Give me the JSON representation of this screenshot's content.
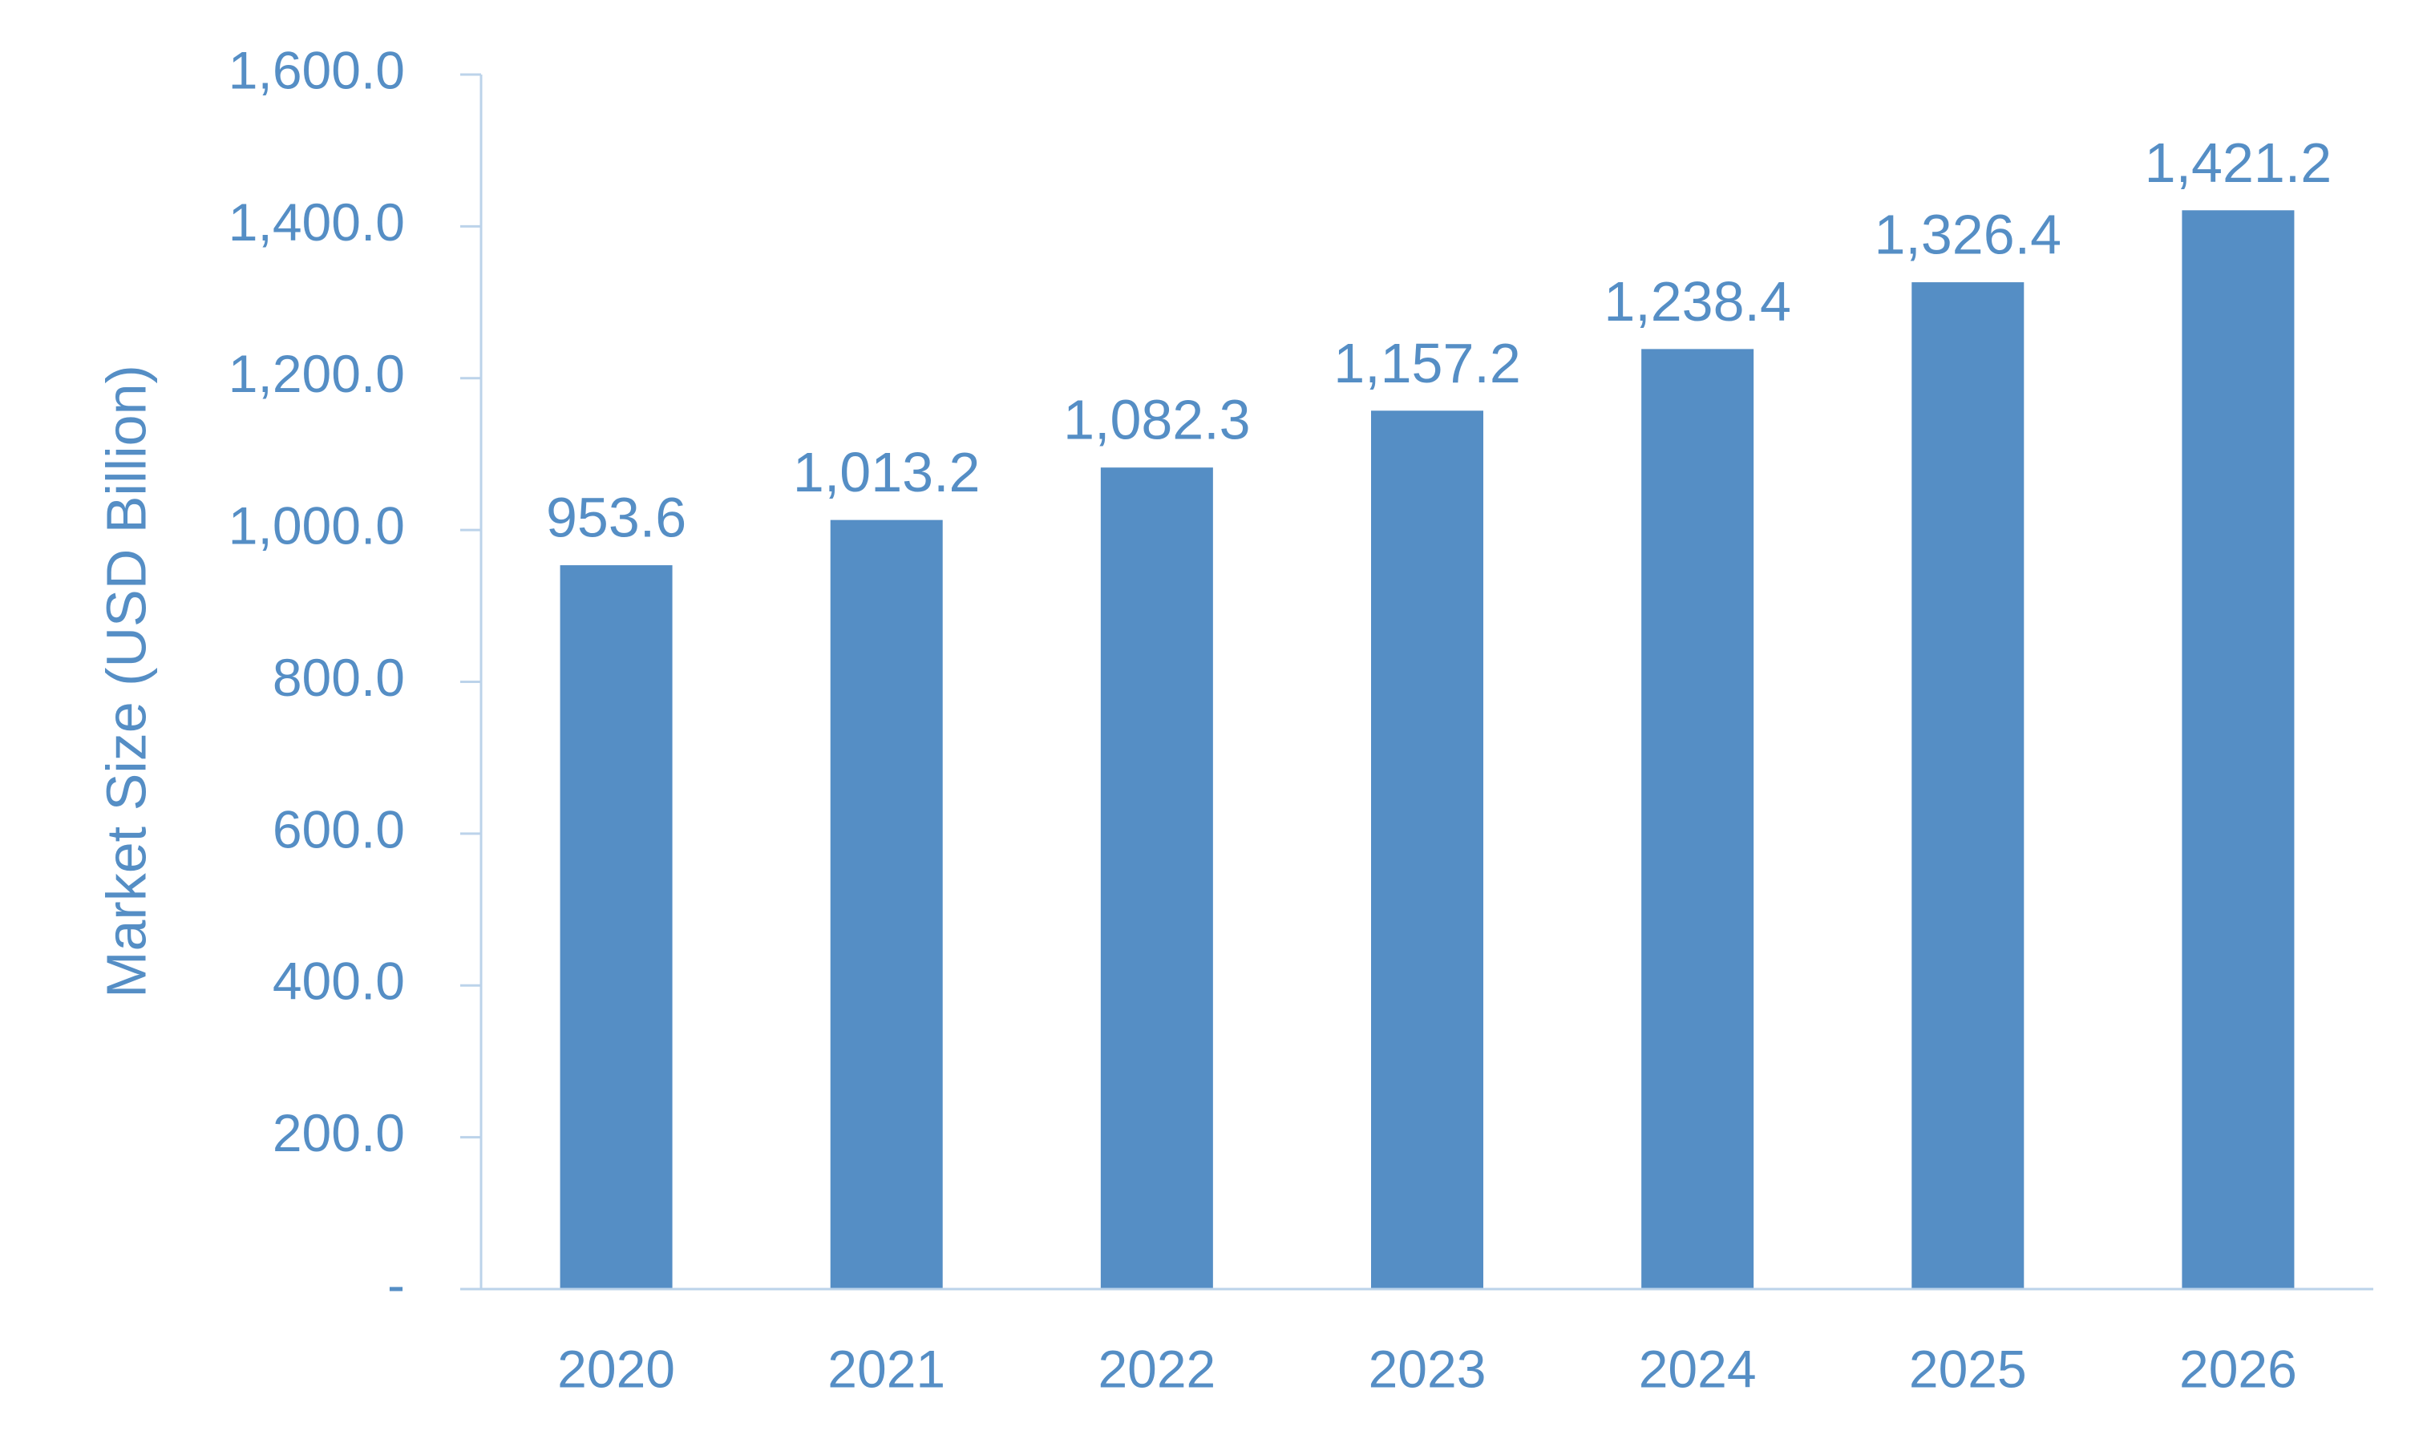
{
  "chart_data": {
    "type": "bar",
    "title": "",
    "xlabel": "",
    "ylabel": "Market Size (USD Billion)",
    "categories": [
      "2020",
      "2021",
      "2022",
      "2023",
      "2024",
      "2025",
      "2026"
    ],
    "values": [
      953.6,
      1013.2,
      1082.3,
      1157.2,
      1238.4,
      1326.4,
      1421.2
    ],
    "data_labels": [
      "953.6",
      "1,013.2",
      "1,082.3",
      "1,157.2",
      "1,238.4",
      "1,326.4",
      "1,421.2"
    ],
    "ylim": [
      0,
      1600
    ],
    "yticks": [
      0,
      200,
      400,
      600,
      800,
      1000,
      1200,
      1400,
      1600
    ],
    "ytick_labels": [
      "-",
      "200.0",
      "400.0",
      "600.0",
      "800.0",
      "1,000.0",
      "1,200.0",
      "1,400.0",
      "1,600.0"
    ],
    "grid": false,
    "legend": "none",
    "colors": {
      "bar": "#558ec5",
      "text": "#558ec5",
      "axis": "#bcd3ea"
    }
  }
}
